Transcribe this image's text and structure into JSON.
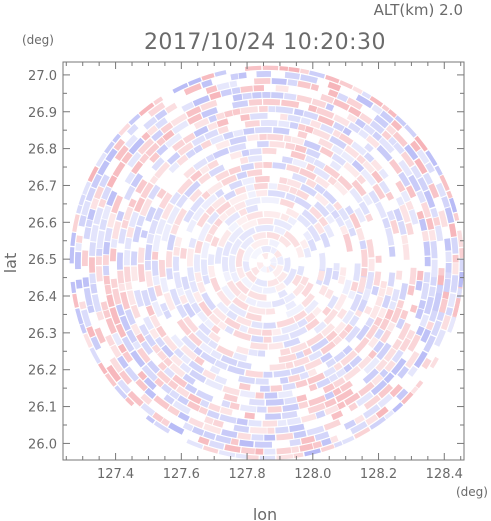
{
  "header": {
    "altitude_text": "ALT(km) 2.0",
    "datetime_text": "2017/10/24 10:20:30"
  },
  "chart_data": {
    "type": "heatmap",
    "title": "2017/10/24 10:20:30",
    "subtitle": "ALT(km) 2.0",
    "xlabel": "lon",
    "ylabel": "lat",
    "x_unit": "(deg)",
    "y_unit": "(deg)",
    "xlim": [
      127.24,
      128.46
    ],
    "ylim": [
      25.955,
      27.035
    ],
    "x_ticks": [
      "127.4",
      "127.6",
      "127.8",
      "128.0",
      "128.2",
      "128.4"
    ],
    "y_ticks": [
      "26.0",
      "26.1",
      "26.2",
      "26.3",
      "26.4",
      "26.5",
      "26.6",
      "26.7",
      "26.8",
      "26.9",
      "27.0"
    ],
    "center_lon": 127.86,
    "center_lat": 26.49,
    "radius_deg_lat": 0.535,
    "colormap": {
      "positive": "#f4a0a6",
      "negative": "#a6aaf4",
      "neutral": "#ffffff"
    },
    "grid": false
  }
}
